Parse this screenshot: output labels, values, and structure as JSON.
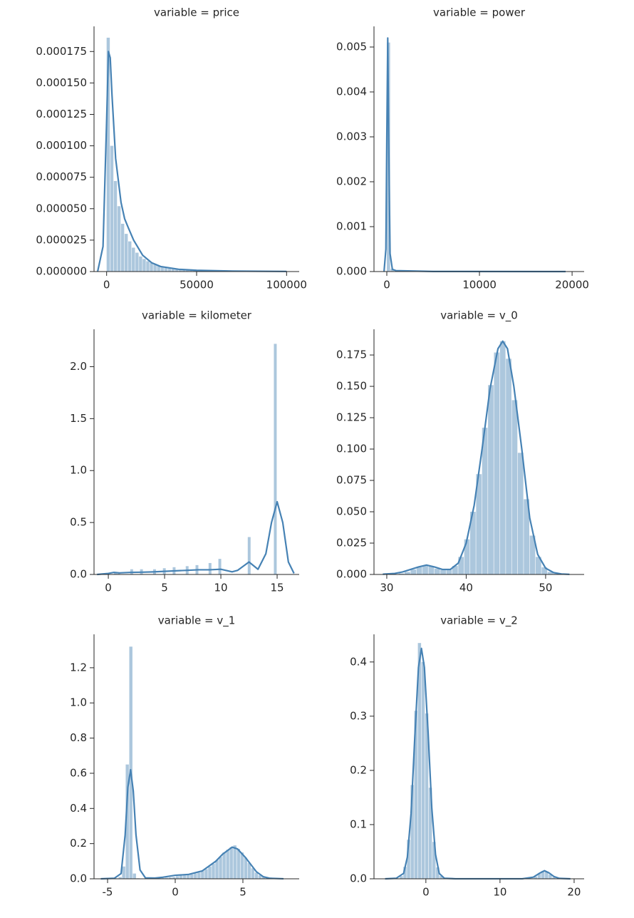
{
  "chart_data": [
    {
      "type": "distplot",
      "title": "variable = price",
      "color": "#4682b4",
      "bins": [
        0,
        2000,
        4000,
        6000,
        8000,
        10000,
        12000,
        14000,
        16000,
        18000,
        20000,
        22000,
        24000,
        26000,
        28000,
        30000,
        32000,
        34000,
        36000,
        38000,
        40000,
        42000,
        44000,
        46000,
        48000,
        50000,
        52000,
        54000,
        56000,
        58000,
        60000,
        62000,
        64000,
        66000,
        68000,
        70000,
        72000,
        74000,
        76000,
        78000,
        80000,
        82000,
        84000,
        86000,
        88000,
        90000,
        92000,
        94000,
        96000,
        98000,
        100000
      ],
      "counts": [
        0.000186,
        0.0001,
        7.2e-05,
        5.2e-05,
        3.8e-05,
        3e-05,
        2.4e-05,
        1.9e-05,
        1.5e-05,
        1.2e-05,
        1e-05,
        8.2e-06,
        6.8e-06,
        5.6e-06,
        4.6e-06,
        3.8e-06,
        3.1e-06,
        2.6e-06,
        2.1e-06,
        1.7e-06,
        1.4e-06,
        1.1e-06,
        9e-07,
        8e-07,
        7e-07,
        6e-07,
        5e-07,
        4e-07,
        4e-07,
        3e-07,
        3e-07,
        3e-07,
        2e-07,
        2e-07,
        2e-07,
        2e-07,
        1e-07,
        1e-07,
        1e-07,
        1e-07,
        1e-07,
        1e-07,
        1e-07,
        1e-07,
        1e-07,
        1e-07,
        1e-07,
        1e-07,
        1e-07,
        1e-07
      ],
      "kde": {
        "x": [
          -5000,
          -2000,
          0,
          1000,
          2000,
          3000,
          5000,
          8000,
          10000,
          12000,
          15000,
          20000,
          25000,
          30000,
          40000,
          50000,
          70000,
          100000
        ],
        "y": [
          0,
          2e-05,
          0.00012,
          0.000175,
          0.00017,
          0.00014,
          9e-05,
          5.5e-05,
          4.2e-05,
          3.5e-05,
          2.5e-05,
          1.3e-05,
          7e-06,
          4e-06,
          1.8e-06,
          1e-06,
          4e-07,
          1e-07
        ]
      },
      "xlim": [
        -7000,
        107000
      ],
      "xticks": [
        0,
        50000,
        100000
      ],
      "ylim": [
        0,
        0.000195
      ],
      "yticks": [
        {
          "value": 0,
          "label": "0.000000"
        },
        {
          "value": 2.5e-05,
          "label": "0.000025"
        },
        {
          "value": 5e-05,
          "label": "0.000050"
        },
        {
          "value": 7.5e-05,
          "label": "0.000075"
        },
        {
          "value": 0.0001,
          "label": "0.000100"
        },
        {
          "value": 0.000125,
          "label": "0.000125"
        },
        {
          "value": 0.00015,
          "label": "0.000150"
        },
        {
          "value": 0.000175,
          "label": "0.000175"
        }
      ]
    },
    {
      "type": "distplot",
      "title": "variable = power",
      "color": "#4682b4",
      "bins": [
        0,
        400,
        800,
        1200,
        1600,
        2000,
        2400,
        2800,
        3200,
        3600,
        4000,
        4400,
        4800,
        5200,
        5600,
        6000,
        6400,
        6800,
        7200,
        7600,
        8000,
        8400,
        8800,
        9200,
        9600,
        10000,
        10400,
        10800,
        11200,
        11600,
        12000,
        12400,
        12800,
        13200,
        13600,
        14000,
        14400,
        14800,
        15200,
        15600,
        16000,
        16400,
        16800,
        17200,
        17600,
        18000,
        18400,
        18800,
        19200,
        19600,
        20000
      ],
      "counts": [
        0.0051,
        6e-05,
        1e-05,
        4e-06,
        0,
        0,
        0,
        0,
        0,
        0,
        0,
        0,
        0,
        0,
        0,
        0,
        0,
        0,
        0,
        0,
        0,
        0,
        0,
        0,
        0,
        0,
        0,
        0,
        0,
        0,
        0,
        0,
        0,
        0,
        0,
        0,
        0,
        0,
        0,
        0,
        0,
        0,
        0,
        0,
        0,
        0,
        0,
        0,
        0,
        0
      ],
      "kde": {
        "x": [
          -300,
          -100,
          0,
          100,
          200,
          350,
          600,
          1000,
          5000,
          19300
        ],
        "y": [
          0,
          0.0005,
          0.003,
          0.0052,
          0.003,
          0.0004,
          5e-05,
          2e-05,
          2e-06,
          0
        ]
      },
      "xlim": [
        -1385,
        21300
      ],
      "xticks": [
        0,
        10000,
        20000
      ],
      "ylim": [
        0,
        0.00546
      ],
      "yticks": [
        {
          "value": 0,
          "label": "0.000"
        },
        {
          "value": 0.001,
          "label": "0.001"
        },
        {
          "value": 0.002,
          "label": "0.002"
        },
        {
          "value": 0.003,
          "label": "0.003"
        },
        {
          "value": 0.004,
          "label": "0.004"
        },
        {
          "value": 0.005,
          "label": "0.005"
        }
      ]
    },
    {
      "type": "distplot",
      "title": "variable = kilometer",
      "color": "#4682b4",
      "bins": [
        0.5,
        0.79,
        1.08,
        1.37,
        1.66,
        1.95,
        2.24,
        2.53,
        2.82,
        3.11,
        3.4,
        3.69,
        3.98,
        4.27,
        4.56,
        4.85,
        5.14,
        5.43,
        5.72,
        6.01,
        6.3,
        6.59,
        6.88,
        7.17,
        7.46,
        7.75,
        8.04,
        8.33,
        8.62,
        8.91,
        9.2,
        9.49,
        9.78,
        10.07,
        10.36,
        10.65,
        10.94,
        11.23,
        11.52,
        11.81,
        12.1,
        12.39,
        12.68,
        12.97,
        13.26,
        13.55,
        13.84,
        14.13,
        14.42,
        14.71,
        15
      ],
      "counts": [
        0.02,
        0.01,
        0,
        0,
        0,
        0.05,
        0,
        0,
        0.05,
        0,
        0,
        0,
        0.05,
        0,
        0,
        0.06,
        0,
        0,
        0.07,
        0,
        0,
        0,
        0.08,
        0,
        0,
        0.09,
        0,
        0,
        0,
        0.11,
        0,
        0,
        0.15,
        0,
        0,
        0,
        0,
        0,
        0,
        0,
        0,
        0.36,
        0,
        0,
        0,
        0,
        0,
        0,
        0,
        2.22
      ],
      "kde": {
        "x": [
          -1,
          0,
          0.5,
          1,
          2,
          3,
          4,
          5,
          6,
          7,
          8,
          9,
          10,
          11,
          11.5,
          12.5,
          13.3,
          14,
          14.5,
          15,
          15.5,
          16,
          16.5
        ],
        "y": [
          0,
          0.01,
          0.02,
          0.015,
          0.02,
          0.022,
          0.025,
          0.03,
          0.035,
          0.04,
          0.045,
          0.045,
          0.05,
          0.025,
          0.04,
          0.12,
          0.05,
          0.2,
          0.5,
          0.7,
          0.5,
          0.12,
          0.01
        ]
      },
      "xlim": [
        -1.27,
        16.96
      ],
      "xticks": [
        0,
        5,
        10,
        15
      ],
      "ylim": [
        0,
        2.36
      ],
      "yticks": [
        {
          "value": 0,
          "label": "0.0"
        },
        0.5,
        {
          "value": 1,
          "label": "1.0"
        },
        1.5,
        {
          "value": 2,
          "label": "2.0"
        }
      ]
    },
    {
      "type": "distplot",
      "title": "variable = v_0",
      "color": "#4682b4",
      "bins": [
        30,
        30.75,
        31.5,
        32.25,
        33,
        33.75,
        34.5,
        35.25,
        36,
        36.75,
        37.5,
        38.25,
        39,
        39.75,
        40.5,
        41.25,
        42,
        42.75,
        43.5,
        44.25,
        45,
        45.75,
        46.5,
        47.25,
        48,
        48.75,
        49.5,
        50.25,
        51,
        51.75,
        52.5
      ],
      "counts": [
        0.0001,
        0.00025,
        0.0008,
        0.002,
        0.0039,
        0.0059,
        0.007,
        0.0064,
        0.0046,
        0.0035,
        0.0037,
        0.0068,
        0.014,
        0.028,
        0.05,
        0.08,
        0.117,
        0.151,
        0.177,
        0.186,
        0.172,
        0.139,
        0.097,
        0.06,
        0.031,
        0.014,
        0.0057,
        0.002,
        0.0006,
        0.0002
      ],
      "kde": {
        "x": [
          29.5,
          31,
          32,
          33,
          34,
          35,
          36,
          37,
          38,
          39,
          40,
          41,
          42,
          43,
          44,
          44.6,
          45.2,
          46,
          47,
          48,
          49,
          50,
          51,
          52,
          53
        ],
        "y": [
          0.0002,
          0.0008,
          0.002,
          0.004,
          0.006,
          0.0075,
          0.006,
          0.004,
          0.004,
          0.009,
          0.025,
          0.055,
          0.1,
          0.148,
          0.18,
          0.186,
          0.18,
          0.15,
          0.1,
          0.045,
          0.016,
          0.005,
          0.0015,
          0.0004,
          0.0001
        ]
      },
      "xlim": [
        28.39,
        54.85
      ],
      "xticks": [
        30,
        40,
        50
      ],
      "ylim": [
        0,
        0.1955
      ],
      "yticks": [
        {
          "value": 0,
          "label": "0.000"
        },
        0.025,
        {
          "value": 0.05,
          "label": "0.050"
        },
        0.075,
        {
          "value": 0.1,
          "label": "0.100"
        },
        0.125,
        {
          "value": 0.15,
          "label": "0.150"
        },
        0.175
      ]
    },
    {
      "type": "distplot",
      "title": "variable = v_1",
      "color": "#4682b4",
      "bins": [
        -5.25,
        -4.985,
        -4.72,
        -4.455,
        -4.19,
        -3.925,
        -3.66,
        -3.395,
        -3.13,
        -2.865,
        -2.6,
        -2.335,
        -2.07,
        -1.805,
        -1.54,
        -1.275,
        -1.01,
        -0.745,
        -0.48,
        -0.215,
        0.05,
        0.315,
        0.58,
        0.845,
        1.11,
        1.375,
        1.64,
        1.905,
        2.17,
        2.435,
        2.7,
        2.965,
        3.23,
        3.495,
        3.76,
        4.025,
        4.29,
        4.555,
        4.82,
        5.085,
        5.35,
        5.615,
        5.88,
        6.145,
        6.41,
        6.675,
        6.94,
        7.205,
        7.47,
        7.735,
        8
      ],
      "counts": [
        0.001,
        0.001,
        0.002,
        0.003,
        0.01,
        0.07,
        0.65,
        1.32,
        0.03,
        0.003,
        0.001,
        0,
        0,
        0,
        0,
        0.002,
        0.004,
        0.006,
        0.008,
        0.01,
        0.015,
        0.018,
        0.02,
        0.022,
        0.025,
        0.03,
        0.035,
        0.045,
        0.055,
        0.07,
        0.085,
        0.105,
        0.125,
        0.15,
        0.165,
        0.18,
        0.19,
        0.17,
        0.15,
        0.12,
        0.09,
        0.06,
        0.035,
        0.02,
        0.01,
        0.005,
        0.002,
        0.001,
        0.0005,
        0.0002
      ],
      "kde": {
        "x": [
          -5.5,
          -4.5,
          -4,
          -3.7,
          -3.5,
          -3.3,
          -3.1,
          -2.9,
          -2.6,
          -2.2,
          -1.5,
          -1,
          0,
          1,
          2,
          3,
          3.5,
          4.2,
          4.6,
          5.2,
          6,
          6.5,
          7,
          8
        ],
        "y": [
          0,
          0.003,
          0.03,
          0.25,
          0.52,
          0.62,
          0.5,
          0.25,
          0.05,
          0.005,
          0.004,
          0.008,
          0.02,
          0.025,
          0.045,
          0.1,
          0.14,
          0.18,
          0.17,
          0.12,
          0.04,
          0.012,
          0.003,
          0.0003
        ]
      },
      "xlim": [
        -6,
        9.16
      ],
      "xticks": [
        -5,
        0,
        5
      ],
      "ylim": [
        0,
        1.39
      ],
      "yticks": [
        {
          "value": 0,
          "label": "0.0"
        },
        0.2,
        0.4,
        0.6,
        0.8,
        {
          "value": 1,
          "label": "1.0"
        },
        1.2
      ]
    },
    {
      "type": "distplot",
      "title": "variable = v_2",
      "color": "#4682b4",
      "bins": [
        -5,
        -4.51,
        -4.02,
        -3.53,
        -3.04,
        -2.55,
        -2.06,
        -1.57,
        -1.08,
        -0.59,
        -0.1,
        0.39,
        0.88,
        1.37,
        1.86,
        2.35,
        2.84,
        3.33,
        3.82,
        4.31,
        4.8,
        5.29,
        5.78,
        6.27,
        6.76,
        7.25,
        7.74,
        8.23,
        8.72,
        9.21,
        9.7,
        10.19,
        10.68,
        11.17,
        11.66,
        12.15,
        12.64,
        13.13,
        13.62,
        14.11,
        14.6,
        15.09,
        15.58,
        16.07,
        16.56,
        17.05,
        17.54,
        18.03,
        18.52,
        19.01,
        19.5
      ],
      "counts": [
        0,
        0.0001,
        0.0009,
        0.005,
        0.022,
        0.072,
        0.173,
        0.31,
        0.435,
        0.4,
        0.305,
        0.168,
        0.068,
        0.021,
        0.005,
        0.001,
        0.0003,
        0,
        0,
        0,
        0,
        0,
        0,
        0,
        0,
        0,
        0,
        0,
        0,
        0,
        0,
        0,
        0,
        0,
        0,
        0,
        0,
        0,
        0.0001,
        0.001,
        0.004,
        0.0096,
        0.0145,
        0.0135,
        0.0078,
        0.0027,
        0.0006,
        0.0001,
        0,
        0
      ],
      "kde": {
        "x": [
          -5.5,
          -4,
          -3,
          -2.5,
          -2,
          -1.5,
          -1,
          -0.6,
          -0.2,
          0.3,
          0.8,
          1.3,
          1.8,
          2.5,
          4,
          13,
          14.5,
          15.3,
          16,
          16.6,
          17.3,
          18,
          19.5
        ],
        "y": [
          0,
          0.001,
          0.01,
          0.04,
          0.12,
          0.26,
          0.39,
          0.425,
          0.39,
          0.27,
          0.13,
          0.045,
          0.01,
          0.001,
          0.0001,
          0.0001,
          0.003,
          0.01,
          0.015,
          0.011,
          0.004,
          0.0008,
          0
        ]
      },
      "xlim": [
        -7,
        21.35
      ],
      "xticks": [
        0,
        10,
        20
      ],
      "ylim": [
        0,
        0.451
      ],
      "yticks": [
        {
          "value": 0,
          "label": "0.0"
        },
        0.1,
        0.2,
        0.3,
        0.4
      ]
    }
  ]
}
